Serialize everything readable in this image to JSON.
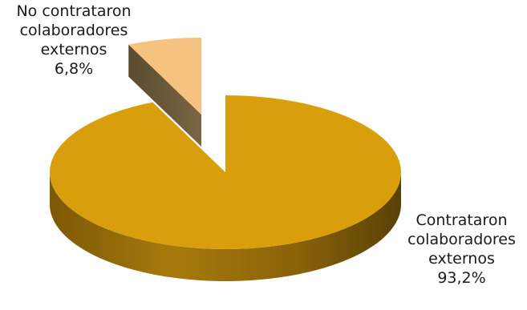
{
  "chart_data": {
    "type": "pie",
    "style": "3d-exploded",
    "legend": "none",
    "slices": [
      {
        "label_lines": [
          "No contrataron",
          "colaboradores",
          "externos"
        ],
        "value_label": "6,8%",
        "value": 6.8,
        "color": "#f5c37f",
        "side_color": "#6b5a3c",
        "exploded": true
      },
      {
        "label_lines": [
          "Contrataron",
          "colaboradores",
          "externos"
        ],
        "value_label": "93,2%",
        "value": 93.2,
        "color": "#d99e0b",
        "side_color": "#8a6208",
        "exploded": false
      }
    ]
  }
}
